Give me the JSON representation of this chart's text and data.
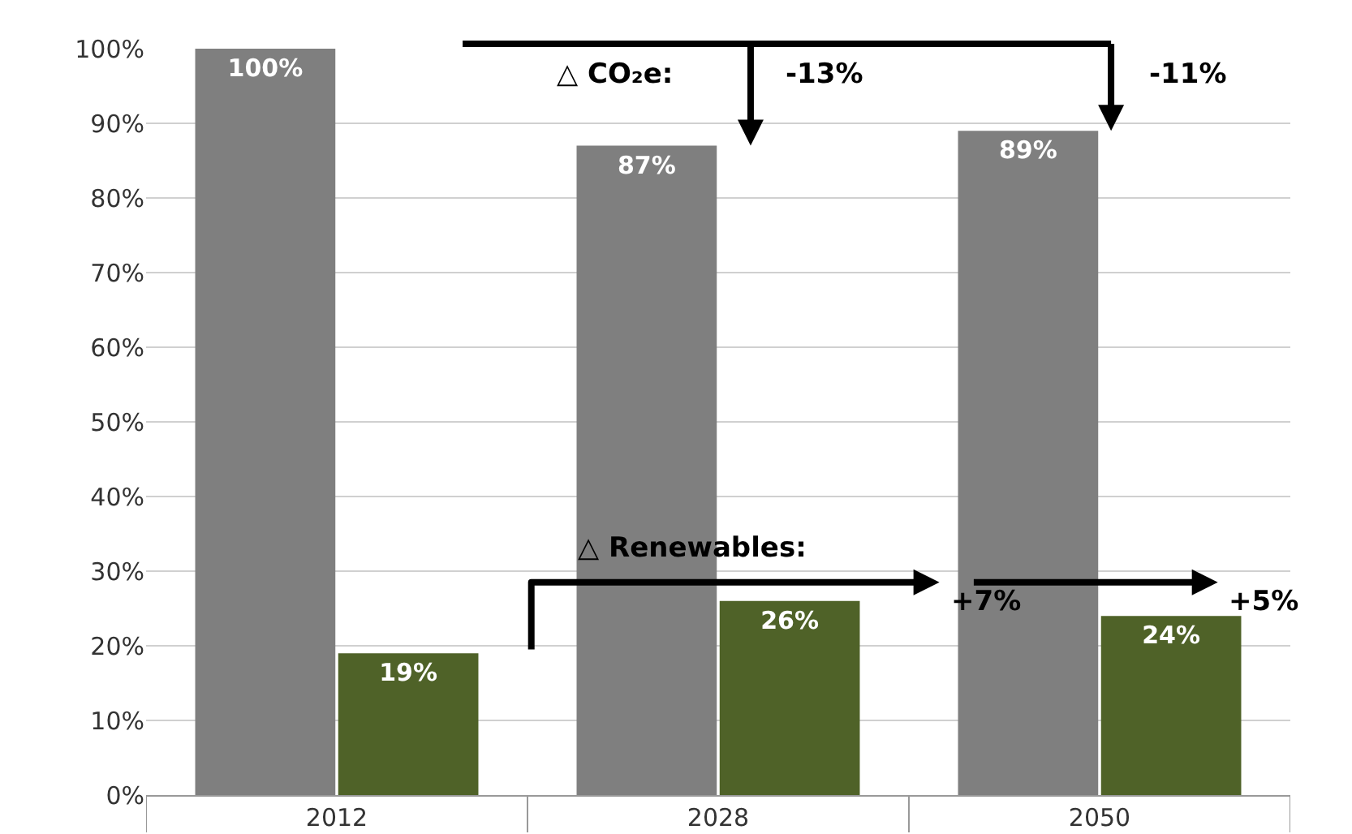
{
  "chart_data": {
    "type": "bar",
    "categories": [
      "2012",
      "2028",
      "2050"
    ],
    "series": [
      {
        "color": "#7f7f7f",
        "values": [
          100,
          87,
          89
        ],
        "value_labels": [
          "100%",
          "87%",
          "89%"
        ]
      },
      {
        "color": "#4f6228",
        "values": [
          19,
          26,
          24
        ],
        "value_labels": [
          "19%",
          "26%",
          "24%"
        ]
      }
    ],
    "ylim": [
      0,
      100
    ],
    "yticks": [
      {
        "value": 0,
        "label": "0%"
      },
      {
        "value": 10,
        "label": "10%"
      },
      {
        "value": 20,
        "label": "20%"
      },
      {
        "value": 30,
        "label": "30%"
      },
      {
        "value": 40,
        "label": "40%"
      },
      {
        "value": 50,
        "label": "50%"
      },
      {
        "value": 60,
        "label": "60%"
      },
      {
        "value": 70,
        "label": "70%"
      },
      {
        "value": 80,
        "label": "80%"
      },
      {
        "value": 90,
        "label": "90%"
      },
      {
        "value": 100,
        "label": "100%"
      }
    ],
    "grid": "y",
    "annotations": [
      "△ CO₂e:",
      "-13%",
      "-11%",
      "△ Renewables:",
      "+7%",
      "+5%"
    ]
  }
}
